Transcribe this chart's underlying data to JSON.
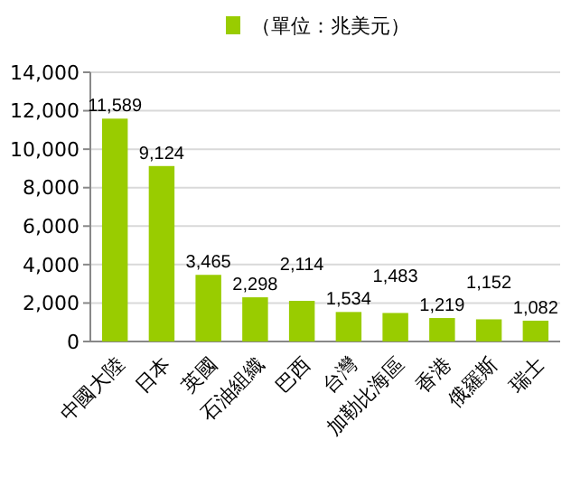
{
  "chart_data": {
    "type": "bar",
    "categories": [
      "中國大陸",
      "日本",
      "英國",
      "石油組織",
      "巴西",
      "台灣",
      "加勒比海區",
      "香港",
      "俄羅斯",
      "瑞士"
    ],
    "series": [
      {
        "name": "（單位：兆美元）",
        "color": "#99cc00",
        "values": [
          11589,
          9124,
          3465,
          2298,
          2114,
          1534,
          1483,
          1219,
          1152,
          1082
        ]
      }
    ],
    "ylim": [
      0,
      14000
    ],
    "yticks": [
      0,
      {
        "value": 2000,
        "label": "2,000"
      },
      {
        "value": 4000,
        "label": "4,000"
      },
      {
        "value": 6000,
        "label": "6,000"
      },
      {
        "value": 8000,
        "label": "8,000"
      },
      {
        "value": 10000,
        "label": "10,000"
      },
      {
        "value": 12000,
        "label": "12,000"
      },
      {
        "value": 14000,
        "label": "14,000"
      }
    ],
    "value_labels": [
      "11,589",
      "9,124",
      "3,465",
      "2,298",
      "2,114",
      "1,534",
      "1,483",
      "1,219",
      "1,152",
      "1,082"
    ],
    "grid": "y",
    "legend": "top"
  }
}
